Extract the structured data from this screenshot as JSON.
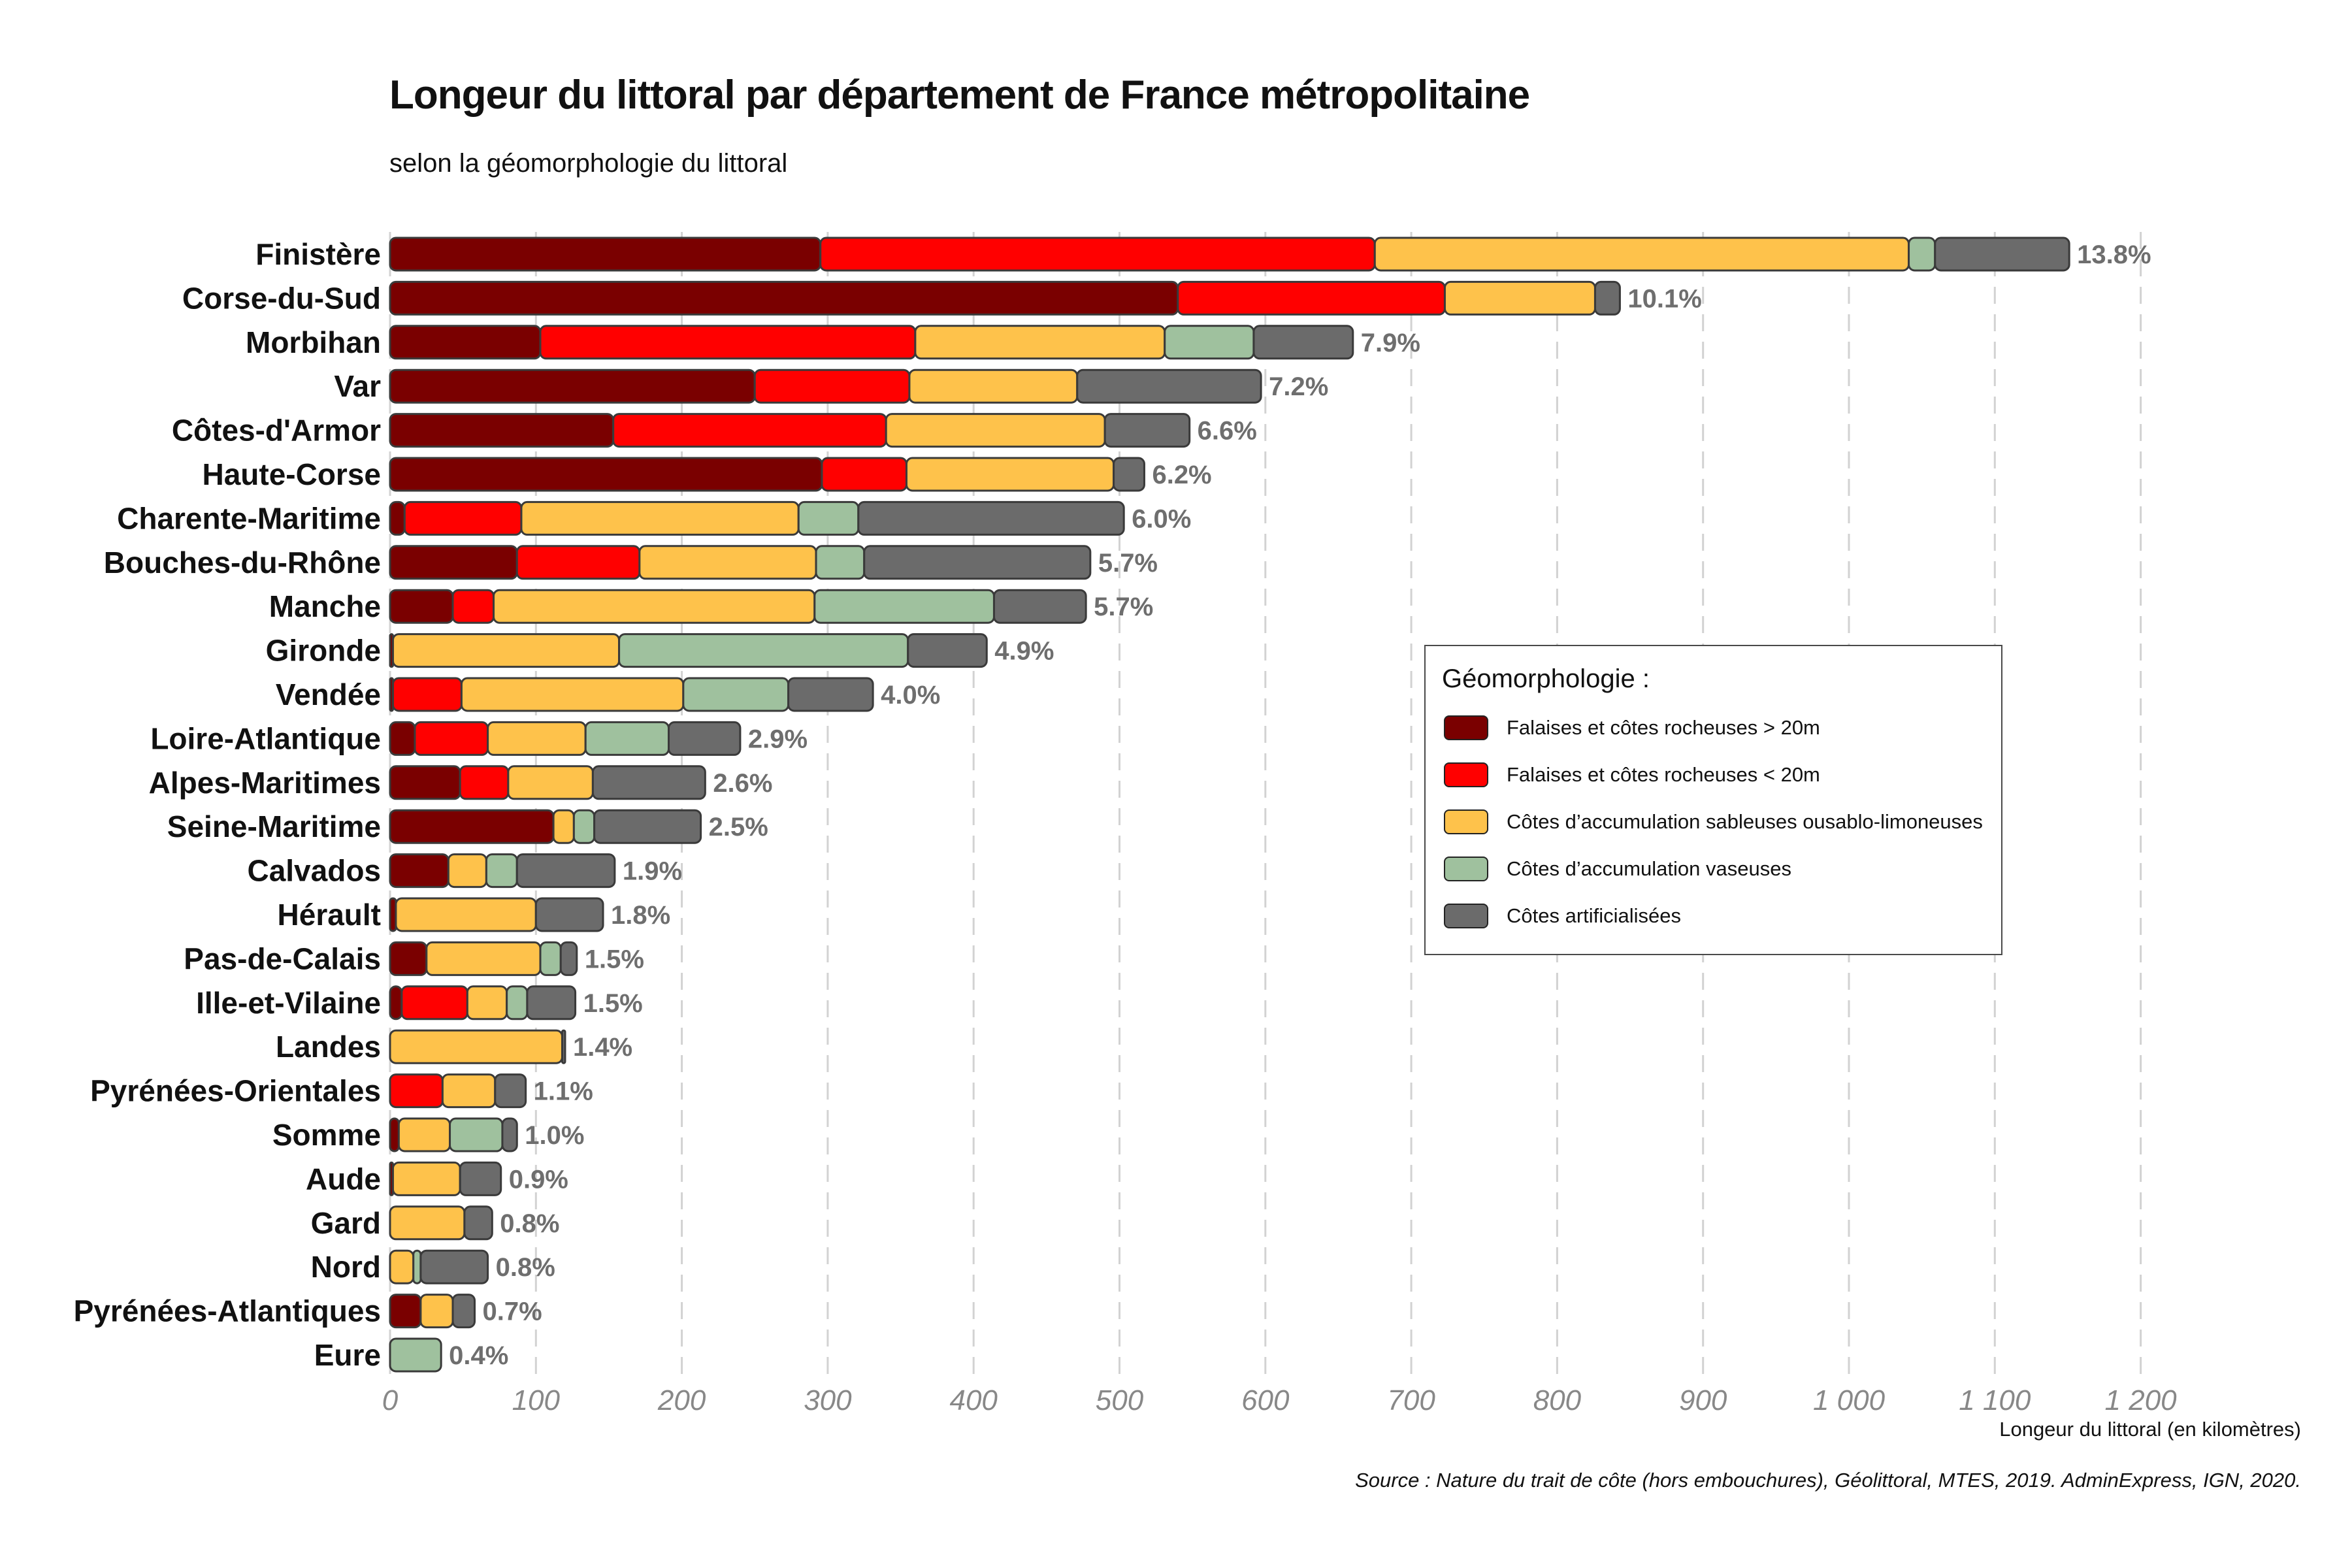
{
  "title": "Longeur du littoral par département de France métropolitaine",
  "subtitle": "selon la géomorphologie du littoral",
  "caption": "Source : Nature du trait de côte (hors embouchures), Géolittoral, MTES, 2019. AdminExpress, IGN, 2020.",
  "chart_data": {
    "type": "bar",
    "orientation": "horizontal",
    "stacked": true,
    "xlabel": "Longeur du littoral (en kilomètres)",
    "xlim": [
      0,
      1200
    ],
    "x_ticks": [
      0,
      100,
      200,
      300,
      400,
      500,
      600,
      700,
      800,
      900,
      1000,
      1100,
      1200
    ],
    "x_tick_labels": [
      "0",
      "100",
      "200",
      "300",
      "400",
      "500",
      "600",
      "700",
      "800",
      "900",
      "1 000",
      "1 100",
      "1 200"
    ],
    "grid": "vertical dashed",
    "legend": {
      "title": "Géomorphologie :",
      "placement": "right"
    },
    "categories": [
      "Finistère",
      "Corse-du-Sud",
      "Morbihan",
      "Var",
      "Côtes-d'Armor",
      "Haute-Corse",
      "Charente-Maritime",
      "Bouches-du-Rhône",
      "Manche",
      "Gironde",
      "Vendée",
      "Loire-Atlantique",
      "Alpes-Maritimes",
      "Seine-Maritime",
      "Calvados",
      "Hérault",
      "Pas-de-Calais",
      "Ille-et-Vilaine",
      "Landes",
      "Pyrénées-Orientales",
      "Somme",
      "Aude",
      "Gard",
      "Nord",
      "Pyrénées-Atlantiques",
      "Eure"
    ],
    "percent_labels": [
      "13.8%",
      "10.1%",
      "7.9%",
      "7.2%",
      "6.6%",
      "6.2%",
      "6.0%",
      "5.7%",
      "5.7%",
      "4.9%",
      "4.0%",
      "2.9%",
      "2.6%",
      "2.5%",
      "1.9%",
      "1.8%",
      "1.5%",
      "1.5%",
      "1.4%",
      "1.1%",
      "1.0%",
      "0.9%",
      "0.8%",
      "0.8%",
      "0.7%",
      "0.4%"
    ],
    "series": [
      {
        "name": "Falaises et côtes rocheuses > 20m",
        "color": "#7a0000",
        "values": [
          295,
          540,
          103,
          250,
          153,
          296,
          10,
          87,
          43,
          2,
          2,
          17,
          48,
          112,
          40,
          4,
          25,
          8,
          0,
          0,
          6,
          2,
          0,
          0,
          21,
          0
        ]
      },
      {
        "name": "Falaises et côtes rocheuses < 20m",
        "color": "#ff0000",
        "values": [
          380,
          183,
          257,
          106,
          187,
          58,
          80,
          84,
          28,
          0,
          47,
          50,
          33,
          0,
          0,
          0,
          0,
          45,
          0,
          36,
          0,
          0,
          0,
          0,
          0,
          0
        ]
      },
      {
        "name": "Côtes d’accumulation sableuses ousablo-limoneuses",
        "color": "#fec24b",
        "values": [
          366,
          103,
          171,
          115,
          150,
          142,
          190,
          121,
          220,
          155,
          152,
          67,
          58,
          14,
          26,
          96,
          78,
          27,
          118,
          36,
          35,
          46,
          51,
          16,
          22,
          0
        ]
      },
      {
        "name": "Côtes d’accumulation vaseuses",
        "color": "#9fc19e",
        "values": [
          18,
          0,
          61,
          0,
          0,
          0,
          41,
          33,
          123,
          198,
          72,
          57,
          0,
          14,
          21,
          0,
          14,
          14,
          0,
          0,
          36,
          0,
          0,
          5,
          0,
          35
        ]
      },
      {
        "name": "Côtes artificialisées",
        "color": "#6b6b6b",
        "values": [
          92,
          17,
          68,
          126,
          58,
          21,
          182,
          155,
          63,
          54,
          58,
          49,
          77,
          73,
          67,
          46,
          11,
          33,
          2,
          21,
          10,
          28,
          19,
          46,
          15,
          0
        ]
      }
    ]
  }
}
